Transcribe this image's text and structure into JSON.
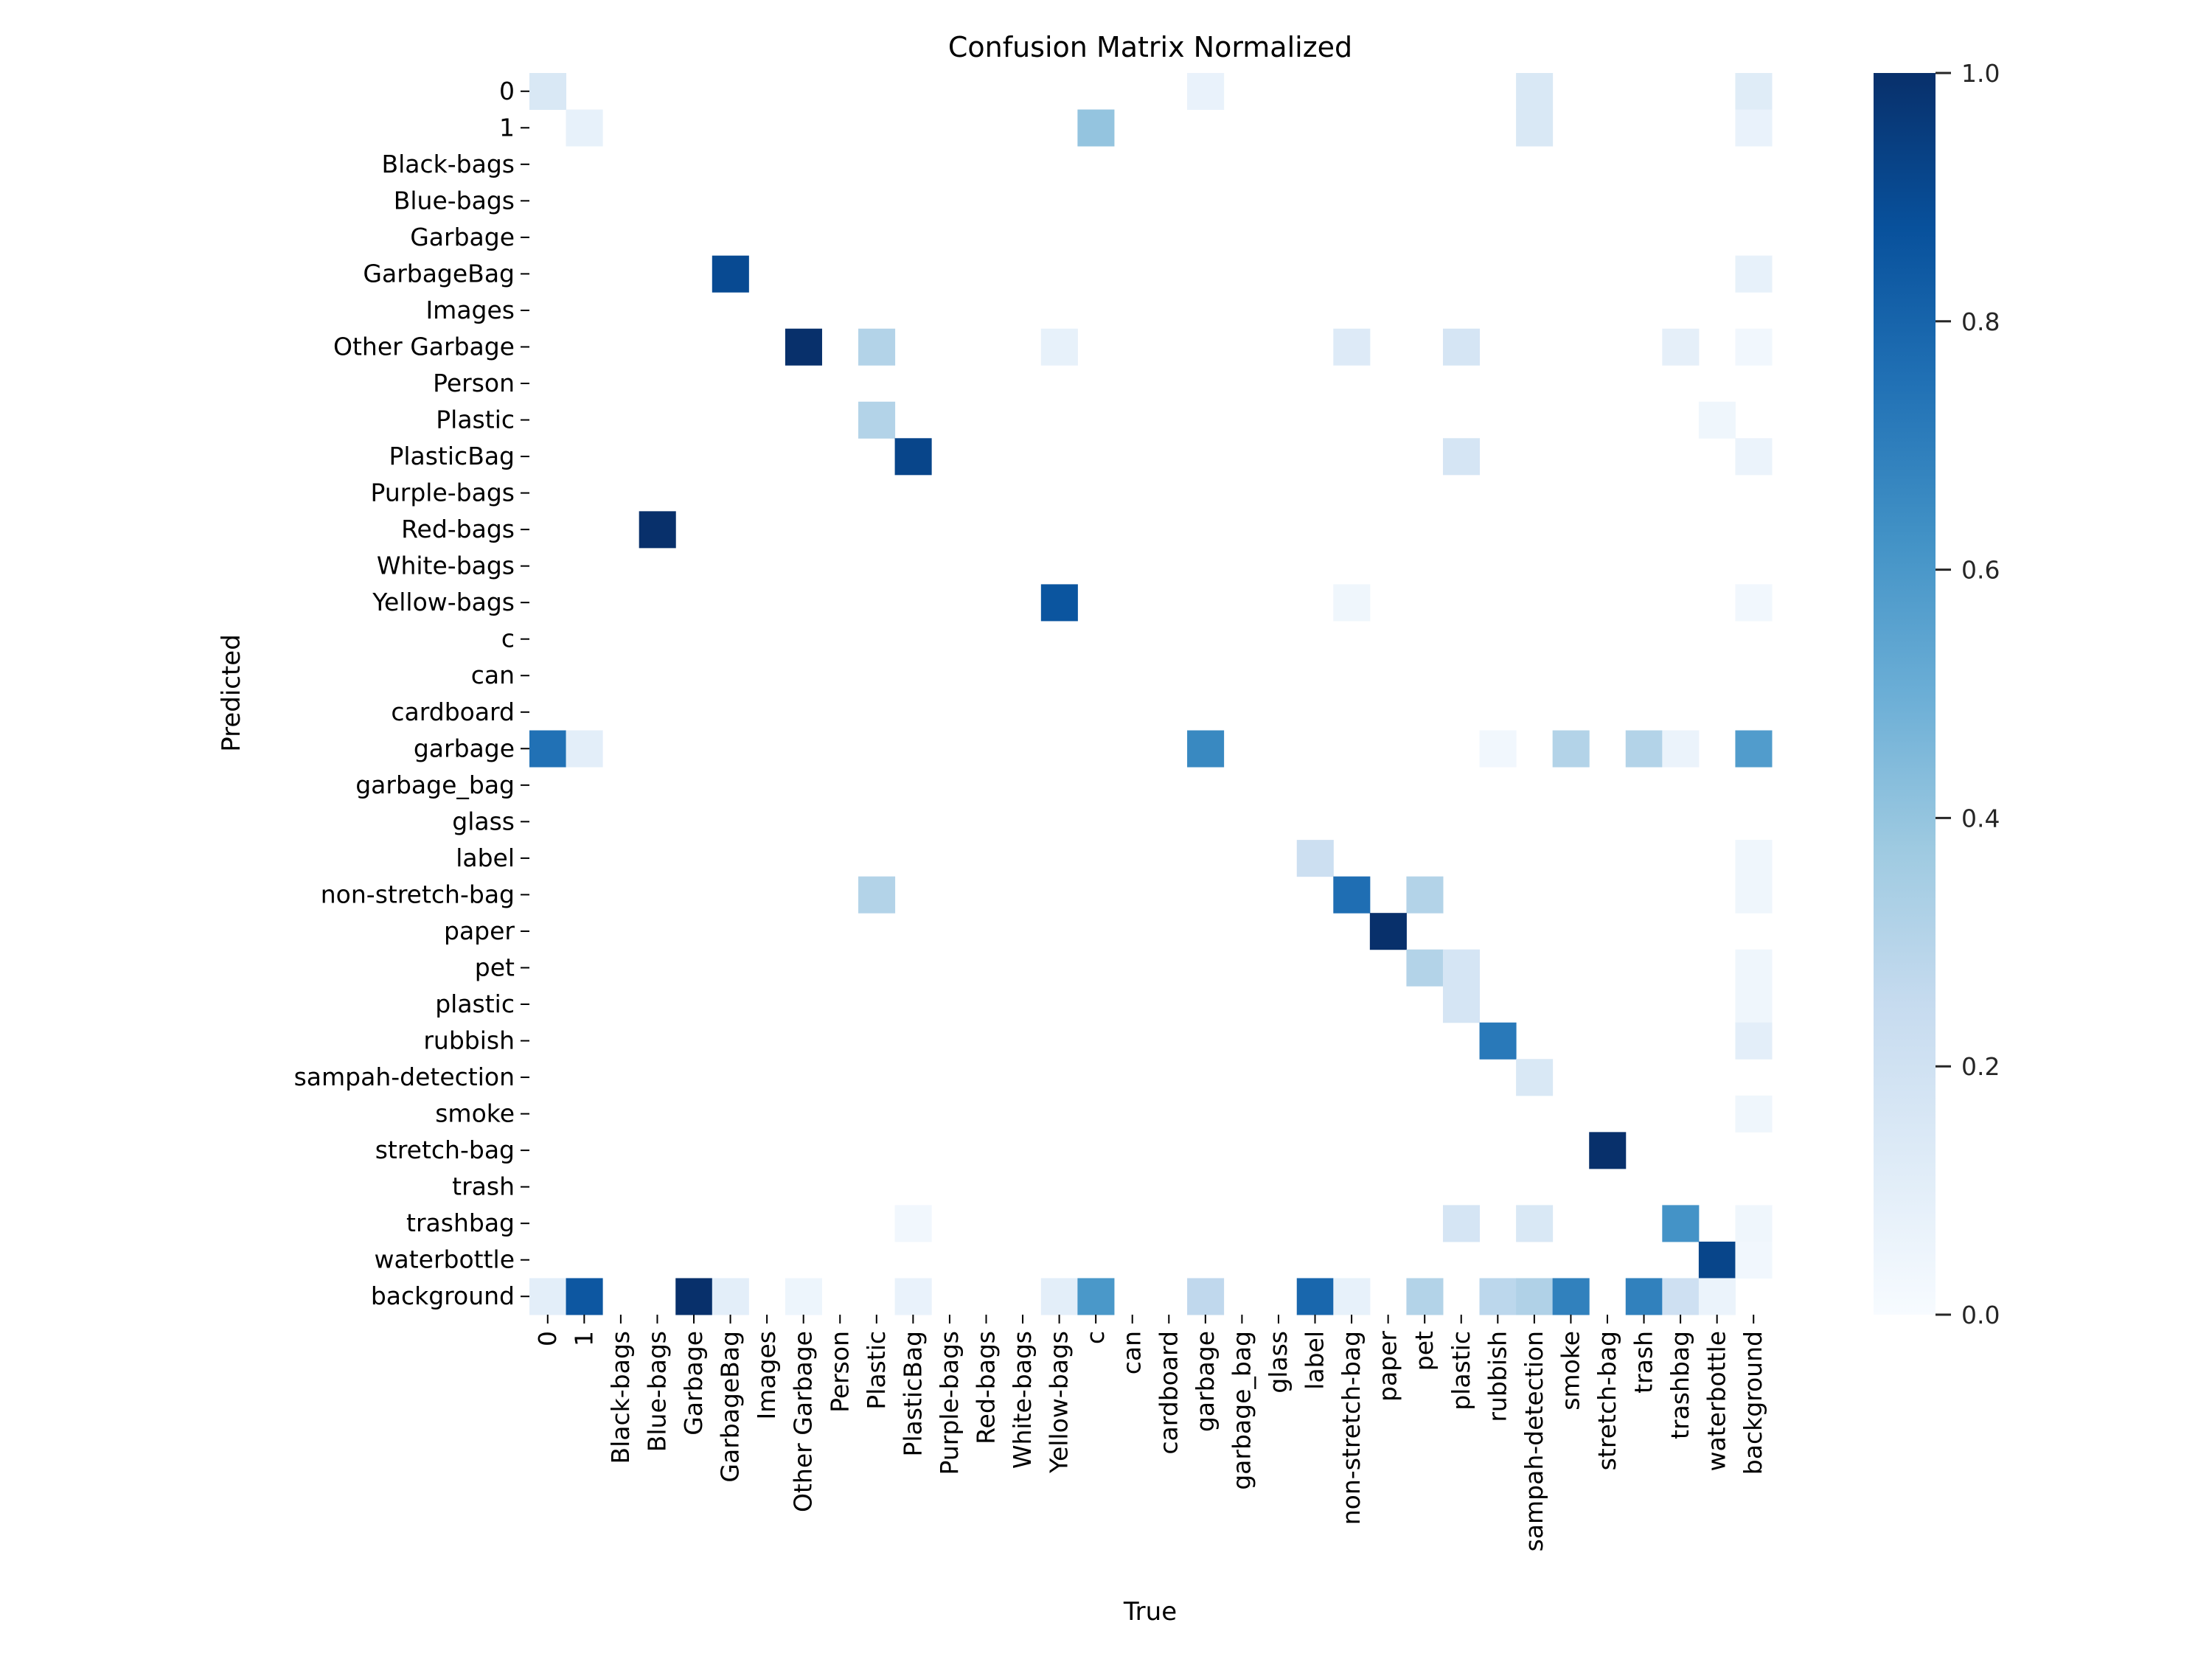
{
  "chart_data": {
    "type": "heatmap",
    "title": "Confusion Matrix Normalized",
    "xlabel": "True",
    "ylabel": "Predicted",
    "colormap": "Blues",
    "vmin": 0.0,
    "vmax": 1.0,
    "colorbar": {
      "ticks": [
        0.0,
        0.2,
        0.4,
        0.6,
        0.8,
        1.0
      ],
      "tick_labels": [
        "0.0",
        "0.2",
        "0.4",
        "0.6",
        "0.8",
        "1.0"
      ],
      "placement": "right"
    },
    "labels": [
      "0",
      "1",
      "Black-bags",
      "Blue-bags",
      "Garbage",
      "GarbageBag",
      "Images",
      "Other Garbage",
      "Person",
      "Plastic",
      "PlasticBag",
      "Purple-bags",
      "Red-bags",
      "White-bags",
      "Yellow-bags",
      "c",
      "can",
      "cardboard",
      "garbage",
      "garbage_bag",
      "glass",
      "label",
      "non-stretch-bag",
      "paper",
      "pet",
      "plastic",
      "rubbish",
      "sampah-detection",
      "smoke",
      "stretch-bag",
      "trash",
      "trashbag",
      "waterbottle",
      "background"
    ],
    "cells": [
      {
        "row": "0",
        "col": "0",
        "value": 0.15
      },
      {
        "row": "0",
        "col": "garbage",
        "value": 0.07
      },
      {
        "row": "0",
        "col": "sampah-detection",
        "value": 0.15
      },
      {
        "row": "0",
        "col": "background",
        "value": 0.12
      },
      {
        "row": "1",
        "col": "1",
        "value": 0.08
      },
      {
        "row": "1",
        "col": "c",
        "value": 0.4
      },
      {
        "row": "1",
        "col": "sampah-detection",
        "value": 0.15
      },
      {
        "row": "1",
        "col": "background",
        "value": 0.07
      },
      {
        "row": "GarbageBag",
        "col": "GarbageBag",
        "value": 0.9
      },
      {
        "row": "GarbageBag",
        "col": "background",
        "value": 0.08
      },
      {
        "row": "Other Garbage",
        "col": "Other Garbage",
        "value": 1.0
      },
      {
        "row": "Other Garbage",
        "col": "Plastic",
        "value": 0.31
      },
      {
        "row": "Other Garbage",
        "col": "Yellow-bags",
        "value": 0.08
      },
      {
        "row": "Other Garbage",
        "col": "non-stretch-bag",
        "value": 0.13
      },
      {
        "row": "Other Garbage",
        "col": "plastic",
        "value": 0.17
      },
      {
        "row": "Other Garbage",
        "col": "trashbag",
        "value": 0.09
      },
      {
        "row": "Other Garbage",
        "col": "background",
        "value": 0.03
      },
      {
        "row": "Plastic",
        "col": "Plastic",
        "value": 0.31
      },
      {
        "row": "Plastic",
        "col": "waterbottle",
        "value": 0.04
      },
      {
        "row": "PlasticBag",
        "col": "PlasticBag",
        "value": 0.92
      },
      {
        "row": "PlasticBag",
        "col": "plastic",
        "value": 0.17
      },
      {
        "row": "PlasticBag",
        "col": "background",
        "value": 0.06
      },
      {
        "row": "Red-bags",
        "col": "Blue-bags",
        "value": 1.0
      },
      {
        "row": "Yellow-bags",
        "col": "Yellow-bags",
        "value": 0.86
      },
      {
        "row": "Yellow-bags",
        "col": "non-stretch-bag",
        "value": 0.04
      },
      {
        "row": "Yellow-bags",
        "col": "background",
        "value": 0.03
      },
      {
        "row": "garbage",
        "col": "0",
        "value": 0.75
      },
      {
        "row": "garbage",
        "col": "1",
        "value": 0.1
      },
      {
        "row": "garbage",
        "col": "garbage",
        "value": 0.66
      },
      {
        "row": "garbage",
        "col": "rubbish",
        "value": 0.03
      },
      {
        "row": "garbage",
        "col": "smoke",
        "value": 0.31
      },
      {
        "row": "garbage",
        "col": "trash",
        "value": 0.31
      },
      {
        "row": "garbage",
        "col": "trashbag",
        "value": 0.06
      },
      {
        "row": "garbage",
        "col": "background",
        "value": 0.58
      },
      {
        "row": "label",
        "col": "label",
        "value": 0.22
      },
      {
        "row": "label",
        "col": "background",
        "value": 0.04
      },
      {
        "row": "non-stretch-bag",
        "col": "Plastic",
        "value": 0.31
      },
      {
        "row": "non-stretch-bag",
        "col": "non-stretch-bag",
        "value": 0.76
      },
      {
        "row": "non-stretch-bag",
        "col": "pet",
        "value": 0.31
      },
      {
        "row": "non-stretch-bag",
        "col": "background",
        "value": 0.04
      },
      {
        "row": "paper",
        "col": "paper",
        "value": 1.0
      },
      {
        "row": "pet",
        "col": "pet",
        "value": 0.31
      },
      {
        "row": "pet",
        "col": "plastic",
        "value": 0.17
      },
      {
        "row": "pet",
        "col": "background",
        "value": 0.04
      },
      {
        "row": "plastic",
        "col": "plastic",
        "value": 0.17
      },
      {
        "row": "plastic",
        "col": "background",
        "value": 0.04
      },
      {
        "row": "rubbish",
        "col": "rubbish",
        "value": 0.72
      },
      {
        "row": "rubbish",
        "col": "background",
        "value": 0.1
      },
      {
        "row": "sampah-detection",
        "col": "sampah-detection",
        "value": 0.15
      },
      {
        "row": "smoke",
        "col": "background",
        "value": 0.04
      },
      {
        "row": "stretch-bag",
        "col": "stretch-bag",
        "value": 1.0
      },
      {
        "row": "trashbag",
        "col": "PlasticBag",
        "value": 0.03
      },
      {
        "row": "trashbag",
        "col": "plastic",
        "value": 0.17
      },
      {
        "row": "trashbag",
        "col": "sampah-detection",
        "value": 0.15
      },
      {
        "row": "trashbag",
        "col": "trashbag",
        "value": 0.62
      },
      {
        "row": "trashbag",
        "col": "background",
        "value": 0.04
      },
      {
        "row": "waterbottle",
        "col": "waterbottle",
        "value": 0.92
      },
      {
        "row": "waterbottle",
        "col": "background",
        "value": 0.03
      },
      {
        "row": "background",
        "col": "0",
        "value": 0.1
      },
      {
        "row": "background",
        "col": "1",
        "value": 0.85
      },
      {
        "row": "background",
        "col": "Garbage",
        "value": 1.0
      },
      {
        "row": "background",
        "col": "GarbageBag",
        "value": 0.1
      },
      {
        "row": "background",
        "col": "Other Garbage",
        "value": 0.05
      },
      {
        "row": "background",
        "col": "PlasticBag",
        "value": 0.07
      },
      {
        "row": "background",
        "col": "Yellow-bags",
        "value": 0.1
      },
      {
        "row": "background",
        "col": "c",
        "value": 0.6
      },
      {
        "row": "background",
        "col": "garbage",
        "value": 0.27
      },
      {
        "row": "background",
        "col": "label",
        "value": 0.79
      },
      {
        "row": "background",
        "col": "non-stretch-bag",
        "value": 0.08
      },
      {
        "row": "background",
        "col": "pet",
        "value": 0.31
      },
      {
        "row": "background",
        "col": "rubbish",
        "value": 0.28
      },
      {
        "row": "background",
        "col": "sampah-detection",
        "value": 0.32
      },
      {
        "row": "background",
        "col": "smoke",
        "value": 0.69
      },
      {
        "row": "background",
        "col": "trash",
        "value": 0.69
      },
      {
        "row": "background",
        "col": "trashbag",
        "value": 0.21
      },
      {
        "row": "background",
        "col": "waterbottle",
        "value": 0.06
      }
    ]
  }
}
